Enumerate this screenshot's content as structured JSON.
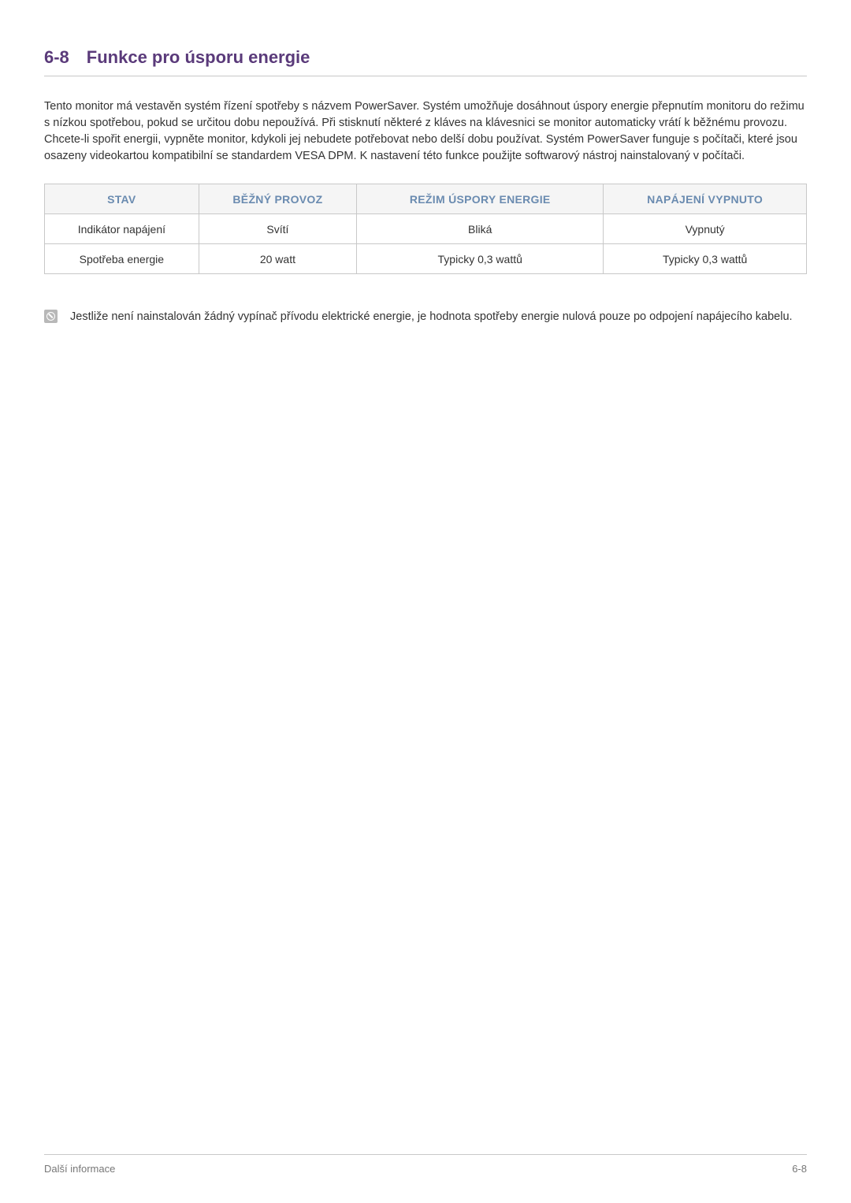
{
  "heading": {
    "number": "6-8",
    "title": "Funkce pro úsporu energie"
  },
  "paragraph": "Tento monitor má vestavěn systém řízení spotřeby s názvem PowerSaver. Systém umožňuje dosáhnout úspory energie přepnutím monitoru do režimu s nízkou spotřebou, pokud se určitou dobu nepoužívá. Při stisknutí některé z kláves na klávesnici se monitor automaticky vrátí k běžnému provozu. Chcete-li spořit energii, vypněte monitor, kdykoli jej nebudete potřebovat nebo delší dobu používat. Systém PowerSaver funguje s počítači, které jsou osazeny videokartou kompatibilní se standardem VESA DPM. K nastavení této funkce použijte softwarový nástroj nainstalovaný v počítači.",
  "table": {
    "headers": [
      "STAV",
      "BĚŽNÝ PROVOZ",
      "REŽIM ÚSPORY ENERGIE",
      "NAPÁJENÍ VYPNUTO"
    ],
    "rows": [
      [
        "Indikátor napájení",
        "Svítí",
        "Bliká",
        "Vypnutý"
      ],
      [
        "Spotřeba energie",
        "20 watt",
        "Typicky 0,3 wattů",
        "Typicky 0,3 wattů"
      ]
    ]
  },
  "note": "Jestliže není nainstalován žádný vypínač přívodu elektrické energie, je hodnota spotřeby energie nulová pouze po odpojení napájecího kabelu.",
  "footer": {
    "left": "Další informace",
    "right": "6-8"
  },
  "colors": {
    "heading": "#5a3a7a",
    "table_header_text": "#6a8bb0",
    "table_header_bg": "#f5f5f5",
    "border": "#c8c8c8",
    "body_text": "#333333",
    "footer_text": "#777777",
    "note_icon_bg": "#b8b8b8"
  },
  "typography": {
    "heading_fontsize": 22,
    "body_fontsize": 14.5,
    "table_fontsize": 14,
    "footer_fontsize": 13
  }
}
